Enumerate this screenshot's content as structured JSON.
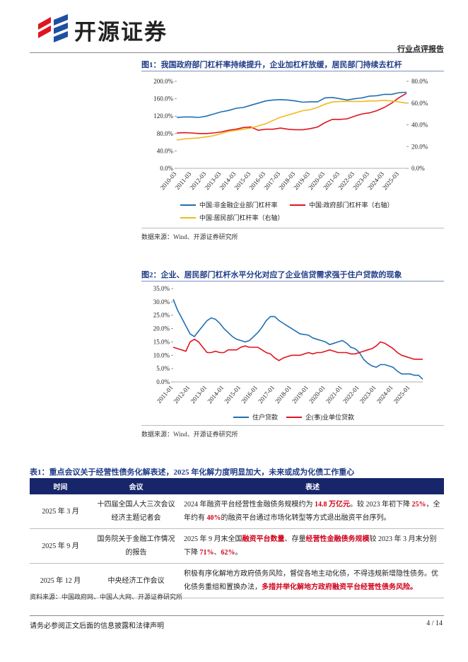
{
  "header": {
    "brand": "开源证券",
    "report_type": "行业点评报告"
  },
  "chart_data": [
    {
      "type": "line",
      "title": "图1：我国政府部门杠杆率持续提升，企业加杠杆放缓，居民部门持续去杠杆",
      "categories": [
        "2010-03",
        null,
        "2011-03",
        null,
        "2012-03",
        null,
        "2013-03",
        null,
        "2014-03",
        null,
        "2015-03",
        null,
        "2016-03",
        null,
        "2017-03",
        null,
        "2018-03",
        null,
        "2019-03",
        null,
        "2020-03",
        null,
        "2021-03",
        null,
        "2022-03",
        null,
        "2023-03",
        null,
        "2024-03",
        null,
        "2025-03",
        null
      ],
      "series": [
        {
          "name": "中国:非金融企业部门杠杆率",
          "color": "#1f6fb2",
          "values": [
            117,
            118,
            118,
            117,
            120,
            125,
            130,
            133,
            138,
            140,
            145,
            150,
            155,
            157,
            158,
            157,
            155,
            152,
            153,
            153,
            162,
            163,
            160,
            157,
            160,
            162,
            166,
            167,
            170,
            170,
            174,
            175
          ]
        },
        {
          "name": "中国:政府部门杠杆率（右轴）",
          "color": "#e0141e",
          "axis": "y2",
          "values": [
            32.5,
            32.8,
            32.5,
            32,
            32,
            32.5,
            33.5,
            35,
            36,
            37.5,
            38,
            35,
            36,
            36,
            37,
            36,
            35.5,
            35.5,
            36.5,
            38,
            42,
            45,
            45,
            45.5,
            48,
            50,
            51,
            53,
            56,
            60,
            65,
            69
          ]
        },
        {
          "name": "中国:居民部门杠杆率（右轴）",
          "color": "#f2b81c",
          "axis": "y2",
          "values": [
            26,
            27,
            27.5,
            28,
            29,
            30,
            32,
            34,
            35,
            36,
            37,
            39,
            41,
            44,
            47,
            49,
            51,
            53,
            54,
            56,
            59,
            61,
            61.5,
            61.5,
            61.5,
            61.5,
            62,
            62,
            62.5,
            62,
            61,
            60
          ]
        }
      ],
      "ylim": [
        0,
        200
      ],
      "yticks": [
        {
          "value": 0,
          "label": "0.0%"
        },
        {
          "value": 40,
          "label": "40.0%"
        },
        {
          "value": 80,
          "label": "80.0%"
        },
        {
          "value": 120,
          "label": "120.0%"
        },
        {
          "value": 160,
          "label": "160.0%"
        },
        {
          "value": 200,
          "label": "200.0%"
        }
      ],
      "y2lim": [
        0,
        80
      ],
      "y2ticks": [
        {
          "value": 0,
          "label": "0.0%"
        },
        {
          "value": 20,
          "label": "20.0%"
        },
        {
          "value": 40,
          "label": "40.0%"
        },
        {
          "value": 60,
          "label": "60.0%"
        },
        {
          "value": 80,
          "label": "80.0%"
        }
      ],
      "source": "数据来源：Wind、开源证券研究所"
    },
    {
      "type": "line",
      "title": "图2：企业、居民部门杠杆水平分化对应了企业信贷需求强于住户贷款的现象",
      "categories": [
        "2011-01",
        null,
        null,
        null,
        "2012-01",
        null,
        null,
        null,
        "2013-01",
        null,
        null,
        null,
        "2014-01",
        null,
        null,
        null,
        "2015-01",
        null,
        null,
        null,
        "2016-01",
        null,
        null,
        null,
        "2017-01",
        null,
        null,
        null,
        "2018-01",
        null,
        null,
        null,
        "2019-01",
        null,
        null,
        null,
        "2020-01",
        null,
        null,
        null,
        "2021-01",
        null,
        null,
        null,
        "2022-01",
        null,
        null,
        null,
        "2023-01",
        null,
        null,
        null,
        "2024-01",
        null,
        null,
        null,
        "2025-01",
        null,
        null,
        null
      ],
      "series": [
        {
          "name": "住户贷款",
          "color": "#1f6fb2",
          "values": [
            31,
            27,
            24,
            21,
            18,
            17,
            19,
            21,
            23,
            24,
            23.5,
            22,
            20,
            18.5,
            17,
            16,
            15.5,
            15,
            15.5,
            17,
            18.5,
            20.5,
            23,
            24.5,
            24.5,
            23,
            22,
            21,
            20,
            19,
            18,
            17.8,
            17.5,
            16.5,
            16,
            15.5,
            15,
            14,
            14.5,
            15,
            15.5,
            14.5,
            13,
            12.5,
            11,
            8.5,
            7,
            6,
            5.5,
            6.5,
            6.5,
            6,
            5.5,
            4,
            3,
            3,
            3,
            2.5,
            2.5,
            1
          ]
        },
        {
          "name": "企(事)业单位贷款",
          "color": "#e0141e",
          "values": [
            13,
            12.5,
            12,
            11.5,
            15,
            16,
            15,
            13,
            11,
            11,
            11.5,
            11,
            11,
            12,
            12,
            12,
            13,
            13.5,
            13,
            13,
            13,
            12,
            11,
            10.5,
            9,
            8,
            9,
            9.5,
            10,
            10,
            10,
            10.5,
            11,
            10.5,
            11,
            11,
            11.5,
            12,
            11.5,
            11,
            11,
            11,
            10.5,
            10.5,
            11,
            11.5,
            12,
            12.5,
            13.5,
            15,
            14.5,
            13.5,
            12.5,
            11,
            10,
            9.5,
            9,
            8.5,
            8.5,
            8.5
          ]
        }
      ],
      "ylim": [
        0,
        35
      ],
      "yticks": [
        {
          "value": 0,
          "label": "0.0%"
        },
        {
          "value": 5,
          "label": "5.0%"
        },
        {
          "value": 10,
          "label": "10.0%"
        },
        {
          "value": 15,
          "label": "15.0%"
        },
        {
          "value": 20,
          "label": "20.0%"
        },
        {
          "value": 25,
          "label": "25.0%"
        },
        {
          "value": 30,
          "label": "30.0%"
        },
        {
          "value": 35,
          "label": "35.0%"
        }
      ],
      "source": "数据来源：Wind、开源证券研究所"
    }
  ],
  "table": {
    "title": "表1：重点会议关于经营性债务化解表述，2025 年化解力度明显加大，未来或成为化债工作重心",
    "columns": [
      "时间",
      "会议",
      "表述"
    ],
    "rows": [
      {
        "time": "2025 年 3 月",
        "meeting": "十四届全国人大三次会议经济主题记者会",
        "description": [
          {
            "text": "2024 年融资平台经营性金融债务规模约为 "
          },
          {
            "text": "14.8 万亿元",
            "em": true
          },
          {
            "text": "。较 2023 年初下降 "
          },
          {
            "text": "25%",
            "em": true
          },
          {
            "text": "，全年约有 "
          },
          {
            "text": "40%",
            "em": true
          },
          {
            "text": "的融资平台通过市场化转型等方式退出融资平台序列。"
          }
        ]
      },
      {
        "time": "2025 年 9 月",
        "meeting": "国务院关于金融工作情况的报告",
        "description": [
          {
            "text": "2025 年 9 月末全国"
          },
          {
            "text": "融资平台数量",
            "em": true
          },
          {
            "text": "、存量"
          },
          {
            "text": "经营性金融债务规模",
            "em": true
          },
          {
            "text": "较 2023 年 3 月末分别下降 "
          },
          {
            "text": "71%",
            "em": true
          },
          {
            "text": "、"
          },
          {
            "text": "62%",
            "em": true
          },
          {
            "text": "。"
          }
        ]
      },
      {
        "time": "2025 年 12 月",
        "meeting": "中央经济工作会议",
        "description": [
          {
            "text": "积极有序化解地方政府债务风险，督促各地主动化债，不得违规新增隐性债务。优化债务重组和置换办法，"
          },
          {
            "text": "多措并举化解地方政府融资平台经营性债务风险。",
            "em": true
          }
        ]
      }
    ],
    "source": "资料来源：中国政府网、中国人大网、开源证券研究所"
  },
  "footer": {
    "disclaimer": "请务必参阅正文后面的信息披露和法律声明",
    "page": "4 / 14"
  }
}
